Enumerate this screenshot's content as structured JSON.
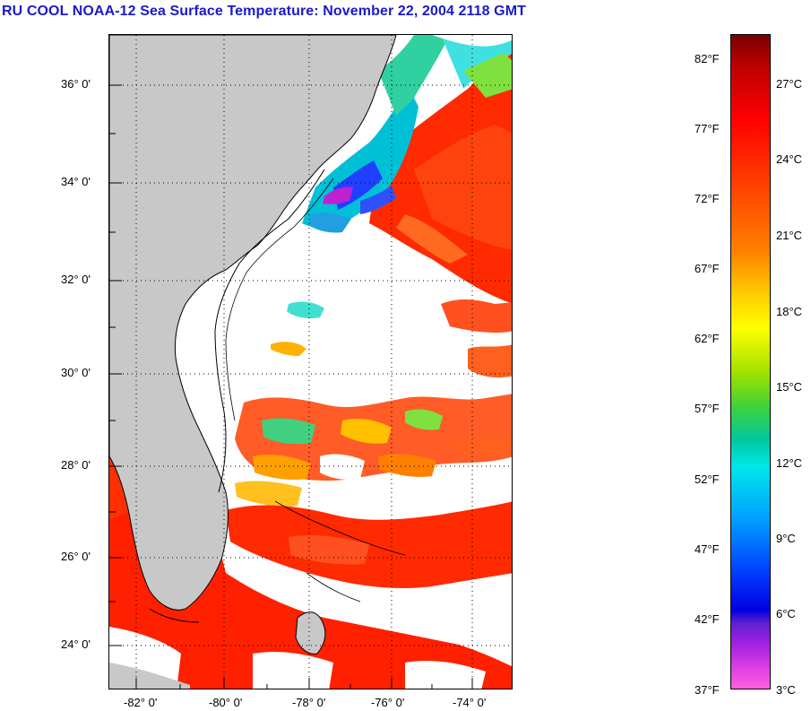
{
  "title": "RU COOL  NOAA-12  Sea Surface Temperature:  November 22, 2004 2118 GMT",
  "map": {
    "lat_labels": [
      "36° 0'",
      "34° 0'",
      "32° 0'",
      "30° 0'",
      "28° 0'",
      "26° 0'",
      "24° 0'"
    ],
    "lon_labels": [
      "-82° 0'",
      "-80° 0'",
      "-78° 0'",
      "-76° 0'",
      "-74° 0'"
    ],
    "land_color": "#c8c8c8",
    "cloud_color": "#ffffff"
  },
  "colorbar": {
    "fahrenheit_labels": [
      "82°F",
      "77°F",
      "72°F",
      "67°F",
      "62°F",
      "57°F",
      "52°F",
      "47°F",
      "42°F",
      "37°F"
    ],
    "celsius_labels": [
      "27°C",
      "24°C",
      "21°C",
      "18°C",
      "15°C",
      "12°C",
      "9°C",
      "6°C",
      "3°C"
    ]
  }
}
